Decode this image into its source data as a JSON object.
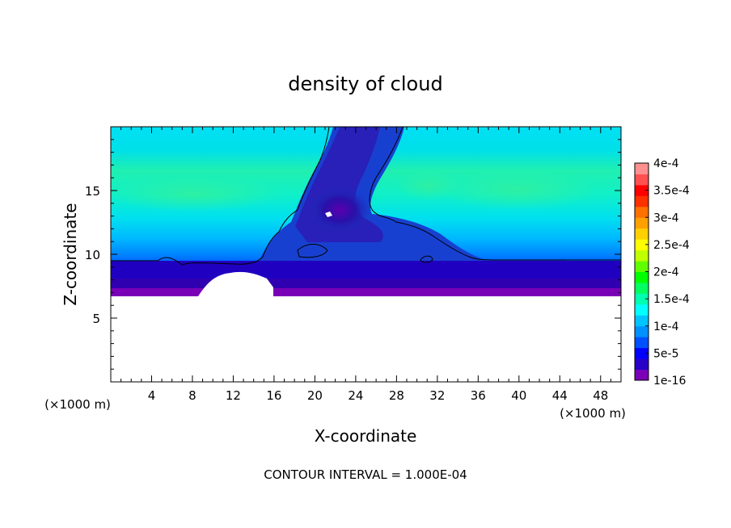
{
  "chart_data": {
    "type": "heatmap",
    "title": "density of cloud",
    "xlabel": "X-coordinate",
    "ylabel": "Z-coordinate",
    "x_unit": "(×1000 m)",
    "y_unit": "(×1000 m)",
    "xlim": [
      0,
      50
    ],
    "ylim": [
      0,
      20
    ],
    "x_ticks": [
      4,
      8,
      12,
      16,
      20,
      24,
      28,
      32,
      36,
      40,
      44,
      48
    ],
    "y_ticks": [
      5,
      10,
      15
    ],
    "footer": "CONTOUR INTERVAL = 1.000E-04",
    "colorbar": {
      "labels": [
        "1e-16",
        "5e-5",
        "1e-4",
        "1.5e-4",
        "2e-4",
        "2.5e-4",
        "3e-4",
        "3.5e-4",
        "4e-4"
      ],
      "colors": [
        "#7a00b8",
        "#2800c8",
        "#0000ff",
        "#0050ff",
        "#0090ff",
        "#00c4ff",
        "#00ffff",
        "#00ffb0",
        "#00ff60",
        "#00ff00",
        "#60ff00",
        "#c0ff00",
        "#ffff00",
        "#ffd000",
        "#ffa000",
        "#ff7000",
        "#ff3000",
        "#ff0000",
        "#ff5050",
        "#ff9090"
      ]
    },
    "field_description": "cloud layer from z=7 to top of domain, thickest column near x=18-28",
    "cloud_base_km": 7,
    "contour_levels": [
      1e-16,
      0.0001
    ]
  }
}
